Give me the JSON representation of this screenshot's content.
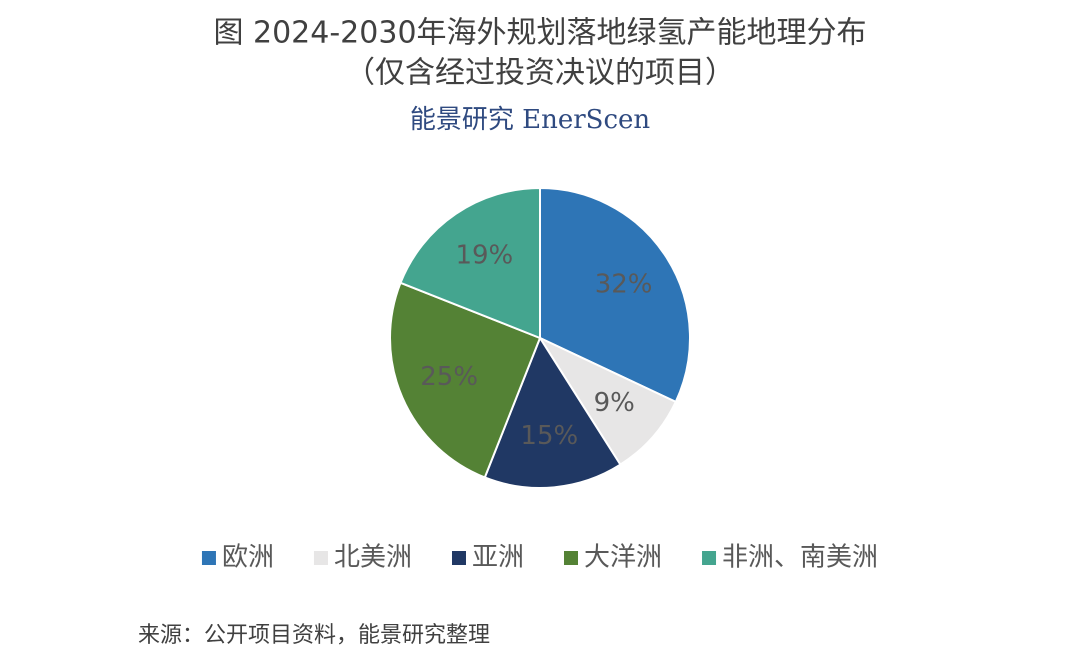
{
  "chart_data": {
    "type": "pie",
    "title": "图  2024-2030年海外规划落地绿氢产能地理分布",
    "subtitle": "（仅含经过投资决议的项目）",
    "brand": "能景研究 EnerScen",
    "categories": [
      "欧洲",
      "北美洲",
      "亚洲",
      "大洋洲",
      "非洲、南美洲"
    ],
    "values": [
      32,
      9,
      15,
      25,
      19
    ],
    "value_labels": [
      "32%",
      "9%",
      "15%",
      "25%",
      "19%"
    ],
    "colors": [
      "#2e75b6",
      "#e7e6e6",
      "#203864",
      "#548235",
      "#44a58f"
    ],
    "legend": "bottom",
    "source": "来源：公开项目资料，能景研究整理"
  }
}
